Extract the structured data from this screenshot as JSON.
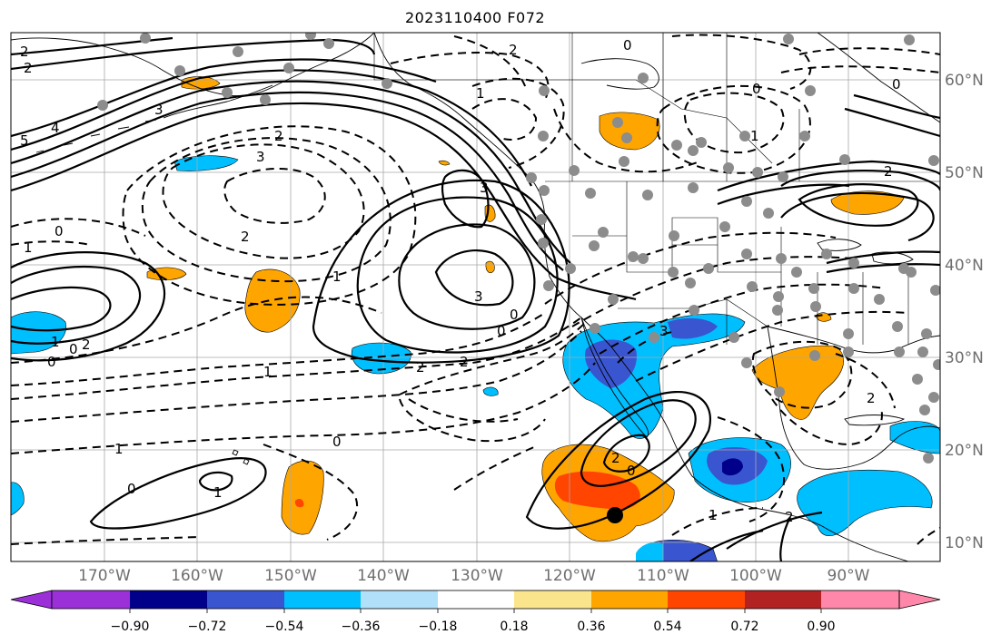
{
  "title": "2023110400 F072",
  "longitude_labels": [
    "170°W",
    "160°W",
    "150°W",
    "140°W",
    "130°W",
    "120°W",
    "110°W",
    "100°W",
    "90°W"
  ],
  "latitude_labels": [
    "60°N",
    "50°N",
    "40°N",
    "30°N",
    "20°N",
    "10°N"
  ],
  "colorbar": {
    "tick_labels": [
      "−0.90",
      "−0.72",
      "−0.54",
      "−0.36",
      "−0.18",
      "0.18",
      "0.36",
      "0.54",
      "0.72",
      "0.90"
    ],
    "colors": [
      "#9b30d9",
      "#00008b",
      "#3a55d0",
      "#00bfff",
      "#b0e0fa",
      "#ffffff",
      "#fbe58c",
      "#ffa500",
      "#ff4500",
      "#b22222",
      "#ff88aa"
    ]
  },
  "contour_labels": [
    "2",
    "2",
    "4",
    "5",
    "3",
    "2",
    "3",
    "3",
    "0",
    "1",
    "2",
    "1",
    "3",
    "0",
    "0",
    "3",
    "1",
    "2",
    "2",
    "0",
    "0",
    "1",
    "2",
    "1",
    "0",
    "1",
    "0",
    "2",
    "2",
    "0",
    "1",
    "2",
    "0",
    "1",
    "0",
    "2",
    "1",
    "2",
    "0"
  ],
  "colors": {
    "contour": "#000000",
    "shade_blue": "#00bfff",
    "shade_darkblue": "#3a55d0",
    "shade_navy": "#00008b",
    "shade_orange": "#ffa500",
    "shade_red": "#ff4500",
    "station": "#8c8c8c",
    "grid": "#a0a0a0"
  }
}
